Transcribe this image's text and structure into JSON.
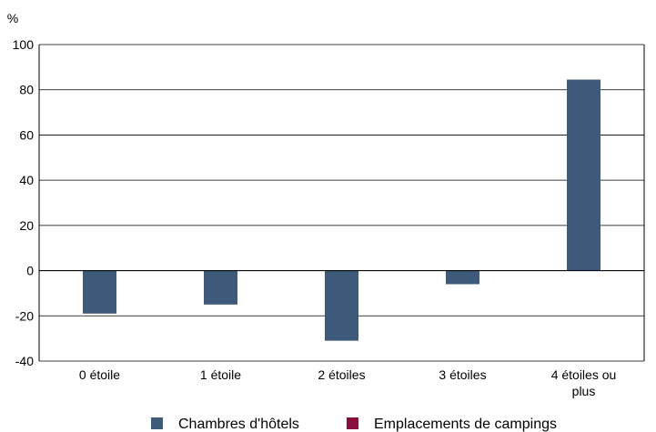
{
  "chart_data": {
    "type": "bar",
    "title": "",
    "xlabel": "",
    "ylabel": "%",
    "ylim": [
      -40,
      100
    ],
    "yticks": [
      -40,
      -20,
      0,
      20,
      40,
      60,
      80,
      100
    ],
    "grid": true,
    "legend_position": "bottom",
    "categories": [
      [
        "0 étoile"
      ],
      [
        "1 étoile"
      ],
      [
        "2 étoiles"
      ],
      [
        "3 étoiles"
      ],
      [
        "4 étoiles ou",
        "plus"
      ]
    ],
    "series": [
      {
        "name": "Chambres d'hôtels",
        "color": "#3d5a7a",
        "values": [
          -19,
          -15,
          -31,
          -6,
          84.5
        ]
      },
      {
        "name": "Emplacements de campings",
        "color": "#8b0f3c",
        "values": [
          null,
          null,
          null,
          null,
          null
        ]
      }
    ]
  }
}
